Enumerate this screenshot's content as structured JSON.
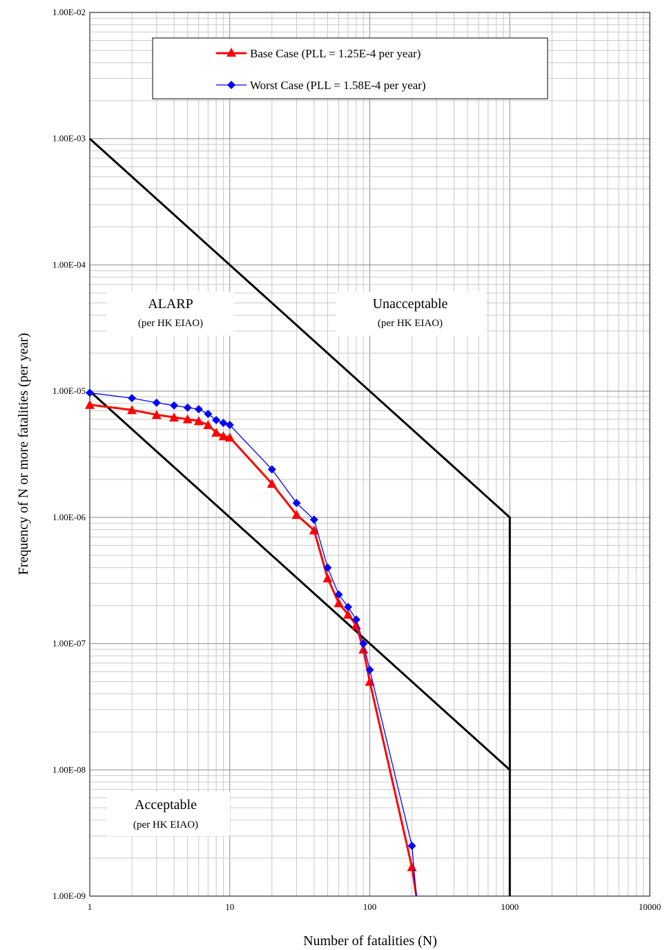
{
  "chart_data": {
    "type": "line",
    "xlabel": "Number of fatalities (N)",
    "ylabel": "Frequency of N or more fatalities (per year)",
    "x_scale": "log",
    "y_scale": "log",
    "xlim": [
      1,
      10000
    ],
    "ylim": [
      1e-09,
      0.01
    ],
    "grid": true,
    "legend_position": "top-center",
    "x_tick_labels": [
      "1",
      "10",
      "100",
      "1000",
      "10000"
    ],
    "y_tick_labels": [
      "1.00E-09",
      "1.00E-08",
      "1.00E-07",
      "1.00E-06",
      "1.00E-05",
      "1.00E-04",
      "1.00E-03",
      "1.00E-02"
    ],
    "series": [
      {
        "name": "Base Case (PLL = 1.25E-4 per year)",
        "color": "#ff0000",
        "marker": "triangle",
        "x": [
          1,
          2,
          3,
          4,
          5,
          6,
          7,
          8,
          9,
          10,
          20,
          30,
          40,
          50,
          60,
          70,
          80,
          90,
          100,
          200,
          215
        ],
        "y": [
          7.8e-06,
          7.1e-06,
          6.5e-06,
          6.2e-06,
          6e-06,
          5.8e-06,
          5.4e-06,
          4.7e-06,
          4.4e-06,
          4.3e-06,
          1.85e-06,
          1.05e-06,
          7.9e-07,
          3.3e-07,
          2.1e-07,
          1.7e-07,
          1.4e-07,
          9e-08,
          5e-08,
          1.7e-09,
          1e-09
        ]
      },
      {
        "name": "Worst Case (PLL = 1.58E-4 per year)",
        "color": "#0000ff",
        "marker": "diamond",
        "x": [
          1,
          2,
          3,
          4,
          5,
          6,
          7,
          8,
          9,
          10,
          20,
          30,
          40,
          50,
          60,
          70,
          80,
          90,
          100,
          200,
          215
        ],
        "y": [
          9.7e-06,
          8.8e-06,
          8.1e-06,
          7.7e-06,
          7.4e-06,
          7.2e-06,
          6.6e-06,
          5.9e-06,
          5.6e-06,
          5.4e-06,
          2.4e-06,
          1.3e-06,
          9.6e-07,
          4e-07,
          2.45e-07,
          1.95e-07,
          1.55e-07,
          1e-07,
          6.2e-08,
          2.5e-09,
          1e-09
        ]
      },
      {
        "color": "#000000",
        "x": [
          1,
          1000,
          1000
        ],
        "y": [
          0.001,
          1e-06,
          1e-09
        ]
      },
      {
        "color": "#000000",
        "x": [
          1,
          1000
        ],
        "y": [
          1e-05,
          1e-08
        ]
      }
    ],
    "annotations": [
      {
        "title": "ALARP",
        "subtitle": "(per HK EIAO)"
      },
      {
        "title": "Unacceptable",
        "subtitle": "(per HK EIAO)"
      },
      {
        "title": "Acceptable",
        "subtitle": "(per HK EIAO)"
      }
    ]
  }
}
